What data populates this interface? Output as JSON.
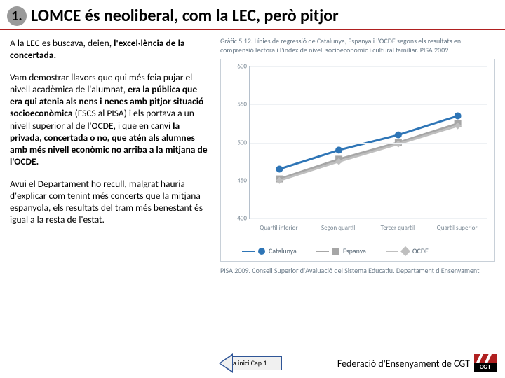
{
  "title": {
    "number": "1.",
    "text": "LOMCE és neoliberal, com la LEC, però pitjor"
  },
  "paragraphs": {
    "p1_a": "A la LEC es buscava, deien, ",
    "p1_b": "l'excel·lència de la concertada.",
    "p2_a": "Vam demostrar llavors que qui més feia pujar el nivell acadèmica de l'alumnat, ",
    "p2_b": "era la pública que era qui atenia als nens i nenes amb pitjor situació socioeconòmica",
    "p2_c": " (ESCS al PISA) i els portava a un nivell superior al de l'OCDE, i que en canvi ",
    "p2_d": "la privada, concertada o no, que atén als alumnes amb més nivell econòmic no arriba a la mitjana de l'OCDE.",
    "p3": "Avui el Departament ho recull, malgrat hauria d'explicar com tenint més concerts que la mitjana espanyola, els resultats del tram més benestant és igual a la resta de l'estat."
  },
  "chart": {
    "caption": "Gràfic 5.12. Línies de regressió de Catalunya, Espanya i l'OCDE segons els resultats en comprensió lectora i l'índex de nivell socioeconòmic i cultural familiar. PISA 2009",
    "source": "PISA 2009. Consell Superior d'Avaluació del Sistema Educatiu. Departament d'Ensenyament",
    "ylim": [
      400,
      600
    ],
    "yticks": [
      400,
      450,
      500,
      550,
      600
    ],
    "xticks": [
      "Quartil inferior",
      "Segon quartil",
      "Tercer quartil",
      "Quartil superior"
    ],
    "series": [
      {
        "name": "Catalunya",
        "color": "#2e75b6",
        "marker": "circle",
        "values": [
          465,
          490,
          510,
          535
        ]
      },
      {
        "name": "Espanya",
        "color": "#a6a6a6",
        "marker": "square",
        "values": [
          452,
          478,
          500,
          525
        ]
      },
      {
        "name": "OCDE",
        "color": "#bfbfbf",
        "marker": "diamond",
        "values": [
          450,
          475,
          498,
          522
        ]
      }
    ],
    "line_width": 3,
    "marker_size": 5,
    "grid_color": "#eef1f4",
    "axis_color": "#b5c0cc",
    "tick_fontsize": 9,
    "tick_color": "#7a8894"
  },
  "nav": {
    "back_label": "a inici Cap 1"
  },
  "footer": {
    "org": "Federació d'Ensenyament de CGT",
    "logo_text": "CGT"
  },
  "colors": {
    "rule": "#b02020",
    "arrow_border": "#2f5597"
  }
}
